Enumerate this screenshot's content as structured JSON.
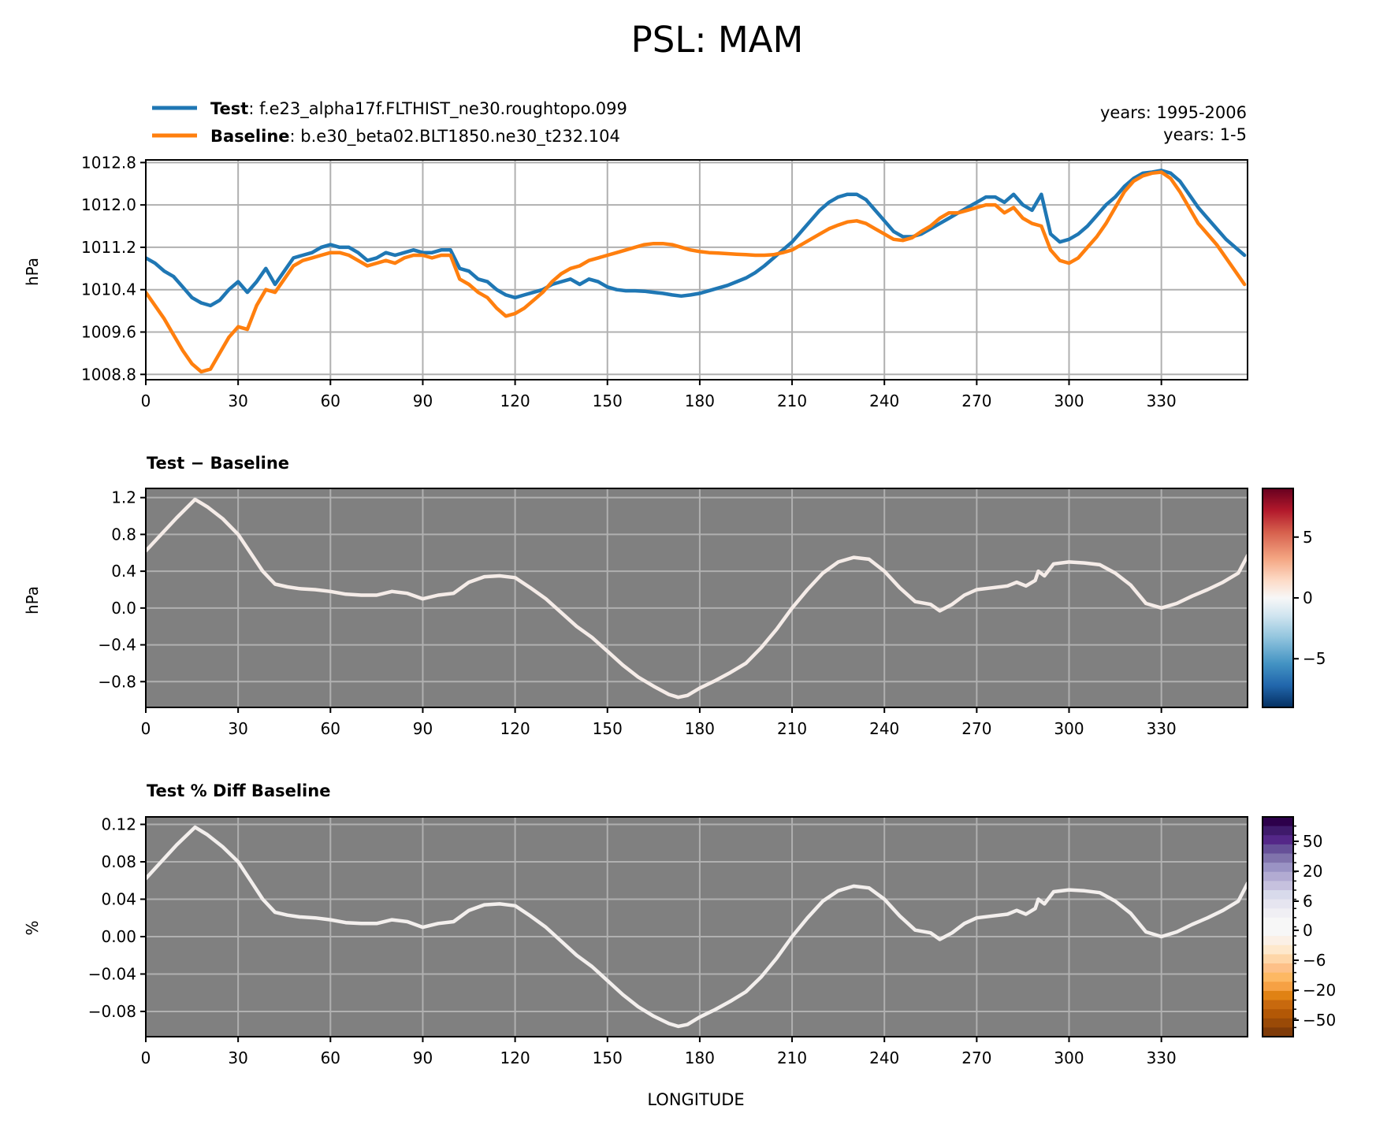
{
  "figure": {
    "title": "PSL: MAM",
    "xlabel": "LONGITUDE",
    "legend": {
      "test_label": "Test",
      "test_name": "f.e23_alpha17f.FLTHIST_ne30.roughtopo.099",
      "baseline_label": "Baseline",
      "baseline_name": "b.e30_beta02.BLT1850.ne30_t232.104",
      "test_years": "years: 1995-2006",
      "baseline_years": "years: 1-5"
    },
    "colors": {
      "test": "#1f77b4",
      "baseline": "#ff7f0e",
      "panel_bg": "#808080",
      "grid": "#b0b0b0"
    }
  },
  "chart_data": [
    {
      "type": "line",
      "title": "",
      "ylabel": "hPa",
      "xlabel": "",
      "xlim": [
        0,
        358
      ],
      "ylim": [
        1008.7,
        1012.85
      ],
      "xticks": [
        0,
        30,
        60,
        90,
        120,
        150,
        180,
        210,
        240,
        270,
        300,
        330
      ],
      "xtick_labels": [
        "0",
        "30",
        "60",
        "90",
        "120",
        "150",
        "180",
        "210",
        "240",
        "270",
        "300",
        "330"
      ],
      "yticks": [
        1008.8,
        1009.6,
        1010.4,
        1011.2,
        1012.0,
        1012.8
      ],
      "ytick_labels": [
        "1008.8",
        "1009.6",
        "1010.4",
        "1011.2",
        "1012.0",
        "1012.8"
      ],
      "grid": true,
      "series": [
        {
          "name": "Test",
          "color": "#1f77b4",
          "x": [
            0,
            3,
            6,
            9,
            12,
            15,
            18,
            21,
            24,
            27,
            30,
            33,
            36,
            39,
            42,
            45,
            48,
            51,
            54,
            57,
            60,
            63,
            66,
            69,
            72,
            75,
            78,
            81,
            84,
            87,
            90,
            93,
            96,
            99,
            102,
            105,
            108,
            111,
            114,
            117,
            120,
            123,
            126,
            129,
            132,
            135,
            138,
            141,
            144,
            147,
            150,
            153,
            156,
            159,
            162,
            165,
            168,
            171,
            174,
            177,
            180,
            183,
            186,
            189,
            192,
            195,
            198,
            201,
            204,
            207,
            210,
            213,
            216,
            219,
            222,
            225,
            228,
            231,
            234,
            237,
            240,
            243,
            246,
            249,
            252,
            255,
            258,
            261,
            264,
            267,
            270,
            273,
            276,
            279,
            282,
            285,
            288,
            291,
            294,
            297,
            300,
            303,
            306,
            309,
            312,
            315,
            318,
            321,
            324,
            327,
            330,
            333,
            336,
            339,
            342,
            345,
            348,
            351,
            354,
            357
          ],
          "y": [
            1011.0,
            1010.9,
            1010.75,
            1010.65,
            1010.45,
            1010.25,
            1010.15,
            1010.1,
            1010.2,
            1010.4,
            1010.55,
            1010.35,
            1010.55,
            1010.8,
            1010.5,
            1010.75,
            1011.0,
            1011.05,
            1011.1,
            1011.2,
            1011.25,
            1011.2,
            1011.2,
            1011.1,
            1010.95,
            1011.0,
            1011.1,
            1011.05,
            1011.1,
            1011.15,
            1011.1,
            1011.1,
            1011.15,
            1011.15,
            1010.8,
            1010.75,
            1010.6,
            1010.55,
            1010.4,
            1010.3,
            1010.25,
            1010.3,
            1010.35,
            1010.4,
            1010.5,
            1010.55,
            1010.6,
            1010.5,
            1010.6,
            1010.55,
            1010.45,
            1010.4,
            1010.38,
            1010.38,
            1010.37,
            1010.35,
            1010.33,
            1010.3,
            1010.28,
            1010.3,
            1010.33,
            1010.38,
            1010.43,
            1010.48,
            1010.55,
            1010.62,
            1010.72,
            1010.85,
            1011.0,
            1011.15,
            1011.3,
            1011.5,
            1011.7,
            1011.9,
            1012.05,
            1012.15,
            1012.2,
            1012.2,
            1012.1,
            1011.9,
            1011.7,
            1011.5,
            1011.4,
            1011.4,
            1011.45,
            1011.55,
            1011.65,
            1011.75,
            1011.85,
            1011.95,
            1012.05,
            1012.15,
            1012.15,
            1012.05,
            1012.2,
            1012.0,
            1011.9,
            1012.2,
            1011.45,
            1011.3,
            1011.35,
            1011.45,
            1011.6,
            1011.8,
            1012.0,
            1012.15,
            1012.35,
            1012.5,
            1012.6,
            1012.62,
            1012.65,
            1012.6,
            1012.45,
            1012.2,
            1011.95,
            1011.75,
            1011.55,
            1011.35,
            1011.2,
            1011.05
          ]
        },
        {
          "name": "Baseline",
          "color": "#ff7f0e",
          "x": [
            0,
            3,
            6,
            9,
            12,
            15,
            18,
            21,
            24,
            27,
            30,
            33,
            36,
            39,
            42,
            45,
            48,
            51,
            54,
            57,
            60,
            63,
            66,
            69,
            72,
            75,
            78,
            81,
            84,
            87,
            90,
            93,
            96,
            99,
            102,
            105,
            108,
            111,
            114,
            117,
            120,
            123,
            126,
            129,
            132,
            135,
            138,
            141,
            144,
            147,
            150,
            153,
            156,
            159,
            162,
            165,
            168,
            171,
            174,
            177,
            180,
            183,
            186,
            189,
            192,
            195,
            198,
            201,
            204,
            207,
            210,
            213,
            216,
            219,
            222,
            225,
            228,
            231,
            234,
            237,
            240,
            243,
            246,
            249,
            252,
            255,
            258,
            261,
            264,
            267,
            270,
            273,
            276,
            279,
            282,
            285,
            288,
            291,
            294,
            297,
            300,
            303,
            306,
            309,
            312,
            315,
            318,
            321,
            324,
            327,
            330,
            333,
            336,
            339,
            342,
            345,
            348,
            351,
            354,
            357
          ],
          "y": [
            1010.35,
            1010.1,
            1009.85,
            1009.55,
            1009.25,
            1009.0,
            1008.85,
            1008.9,
            1009.2,
            1009.5,
            1009.7,
            1009.65,
            1010.1,
            1010.4,
            1010.35,
            1010.6,
            1010.85,
            1010.95,
            1011.0,
            1011.05,
            1011.1,
            1011.1,
            1011.05,
            1010.95,
            1010.85,
            1010.9,
            1010.95,
            1010.9,
            1011.0,
            1011.05,
            1011.05,
            1011.0,
            1011.05,
            1011.05,
            1010.6,
            1010.5,
            1010.35,
            1010.25,
            1010.05,
            1009.9,
            1009.95,
            1010.05,
            1010.2,
            1010.35,
            1010.55,
            1010.7,
            1010.8,
            1010.85,
            1010.95,
            1011.0,
            1011.05,
            1011.1,
            1011.15,
            1011.2,
            1011.25,
            1011.27,
            1011.27,
            1011.25,
            1011.2,
            1011.15,
            1011.12,
            1011.1,
            1011.09,
            1011.08,
            1011.07,
            1011.06,
            1011.05,
            1011.05,
            1011.06,
            1011.1,
            1011.15,
            1011.25,
            1011.35,
            1011.45,
            1011.55,
            1011.62,
            1011.68,
            1011.7,
            1011.65,
            1011.55,
            1011.45,
            1011.35,
            1011.33,
            1011.38,
            1011.5,
            1011.6,
            1011.75,
            1011.85,
            1011.85,
            1011.9,
            1011.95,
            1012.0,
            1012.0,
            1011.85,
            1011.95,
            1011.75,
            1011.65,
            1011.6,
            1011.15,
            1010.95,
            1010.9,
            1011.0,
            1011.2,
            1011.4,
            1011.65,
            1011.95,
            1012.25,
            1012.45,
            1012.55,
            1012.6,
            1012.62,
            1012.5,
            1012.25,
            1011.95,
            1011.65,
            1011.45,
            1011.25,
            1011.0,
            1010.75,
            1010.5
          ]
        }
      ]
    },
    {
      "type": "line",
      "title": "Test − Baseline",
      "ylabel": "hPa",
      "xlabel": "",
      "xlim": [
        0,
        358
      ],
      "ylim": [
        -1.08,
        1.3
      ],
      "xticks": [
        0,
        30,
        60,
        90,
        120,
        150,
        180,
        210,
        240,
        270,
        300,
        330
      ],
      "xtick_labels": [
        "0",
        "30",
        "60",
        "90",
        "120",
        "150",
        "180",
        "210",
        "240",
        "270",
        "300",
        "330"
      ],
      "yticks": [
        1.2,
        0.8,
        0.4,
        0.0,
        -0.4,
        -0.8
      ],
      "ytick_labels": [
        "1.2",
        "0.8",
        "0.4",
        "0.0",
        "−0.4",
        "−0.8"
      ],
      "grid": true,
      "colorbar": {
        "colormap": "RdBu_r",
        "range": [
          -9,
          9
        ],
        "ticks": [
          5,
          0,
          -5
        ],
        "tick_labels": [
          "5",
          "0",
          "−5"
        ]
      },
      "series": [
        {
          "name": "Test - Baseline",
          "color": "#f5ece8",
          "x": [
            0,
            5,
            10,
            16,
            20,
            25,
            30,
            34,
            38,
            42,
            46,
            50,
            55,
            60,
            65,
            70,
            75,
            80,
            85,
            90,
            95,
            100,
            105,
            110,
            115,
            120,
            125,
            130,
            135,
            140,
            145,
            150,
            155,
            160,
            165,
            170,
            173,
            176,
            180,
            185,
            190,
            195,
            200,
            205,
            210,
            215,
            220,
            225,
            230,
            235,
            240,
            245,
            250,
            255,
            258,
            262,
            266,
            270,
            275,
            280,
            283,
            286,
            289,
            290,
            292,
            295,
            300,
            305,
            310,
            315,
            320,
            325,
            330,
            335,
            340,
            345,
            350,
            355,
            358
          ],
          "y": [
            0.62,
            0.8,
            0.98,
            1.18,
            1.1,
            0.97,
            0.8,
            0.6,
            0.4,
            0.26,
            0.23,
            0.21,
            0.2,
            0.18,
            0.15,
            0.14,
            0.14,
            0.18,
            0.16,
            0.1,
            0.14,
            0.16,
            0.28,
            0.34,
            0.35,
            0.33,
            0.22,
            0.1,
            -0.05,
            -0.2,
            -0.32,
            -0.47,
            -0.62,
            -0.75,
            -0.85,
            -0.94,
            -0.97,
            -0.95,
            -0.87,
            -0.79,
            -0.7,
            -0.6,
            -0.43,
            -0.23,
            0.0,
            0.2,
            0.38,
            0.5,
            0.55,
            0.53,
            0.4,
            0.22,
            0.07,
            0.04,
            -0.03,
            0.04,
            0.14,
            0.2,
            0.22,
            0.24,
            0.28,
            0.24,
            0.3,
            0.4,
            0.35,
            0.48,
            0.5,
            0.49,
            0.47,
            0.38,
            0.25,
            0.05,
            0.0,
            0.05,
            0.13,
            0.2,
            0.28,
            0.38,
            0.57
          ]
        }
      ]
    },
    {
      "type": "line",
      "title": "Test % Diff Baseline",
      "ylabel": "%",
      "xlabel": "LONGITUDE",
      "xlim": [
        0,
        358
      ],
      "ylim": [
        -0.107,
        0.128
      ],
      "xticks": [
        0,
        30,
        60,
        90,
        120,
        150,
        180,
        210,
        240,
        270,
        300,
        330
      ],
      "xtick_labels": [
        "0",
        "30",
        "60",
        "90",
        "120",
        "150",
        "180",
        "210",
        "240",
        "270",
        "300",
        "330"
      ],
      "yticks": [
        0.12,
        0.08,
        0.04,
        0.0,
        -0.04,
        -0.08
      ],
      "ytick_labels": [
        "0.12",
        "0.08",
        "0.04",
        "0.00",
        "−0.04",
        "−0.08"
      ],
      "grid": true,
      "colorbar": {
        "colormap": "PuOr_r",
        "ticks": [
          50,
          20,
          6,
          0,
          -6,
          -20,
          -50
        ],
        "tick_labels": [
          "50",
          "20",
          "6",
          "0",
          "−6",
          "−20",
          "−50"
        ]
      },
      "series": [
        {
          "name": "Test % Diff Baseline",
          "color": "#f3efed",
          "x": [
            0,
            5,
            10,
            16,
            20,
            25,
            30,
            34,
            38,
            42,
            46,
            50,
            55,
            60,
            65,
            70,
            75,
            80,
            85,
            90,
            95,
            100,
            105,
            110,
            115,
            120,
            125,
            130,
            135,
            140,
            145,
            150,
            155,
            160,
            165,
            170,
            173,
            176,
            180,
            185,
            190,
            195,
            200,
            205,
            210,
            215,
            220,
            225,
            230,
            235,
            240,
            245,
            250,
            255,
            258,
            262,
            266,
            270,
            275,
            280,
            283,
            286,
            289,
            290,
            292,
            295,
            300,
            305,
            310,
            315,
            320,
            325,
            330,
            335,
            340,
            345,
            350,
            355,
            358
          ],
          "y": [
            0.062,
            0.08,
            0.098,
            0.117,
            0.109,
            0.096,
            0.08,
            0.06,
            0.04,
            0.026,
            0.023,
            0.021,
            0.02,
            0.018,
            0.015,
            0.014,
            0.014,
            0.018,
            0.016,
            0.01,
            0.014,
            0.016,
            0.028,
            0.034,
            0.035,
            0.033,
            0.022,
            0.01,
            -0.005,
            -0.02,
            -0.032,
            -0.047,
            -0.062,
            -0.075,
            -0.085,
            -0.093,
            -0.096,
            -0.094,
            -0.086,
            -0.078,
            -0.069,
            -0.059,
            -0.043,
            -0.023,
            0.0,
            0.02,
            0.038,
            0.049,
            0.054,
            0.052,
            0.04,
            0.022,
            0.007,
            0.004,
            -0.003,
            0.004,
            0.014,
            0.02,
            0.022,
            0.024,
            0.028,
            0.024,
            0.03,
            0.04,
            0.035,
            0.048,
            0.05,
            0.049,
            0.047,
            0.038,
            0.025,
            0.005,
            0.0,
            0.005,
            0.013,
            0.02,
            0.028,
            0.038,
            0.057
          ]
        }
      ]
    }
  ]
}
